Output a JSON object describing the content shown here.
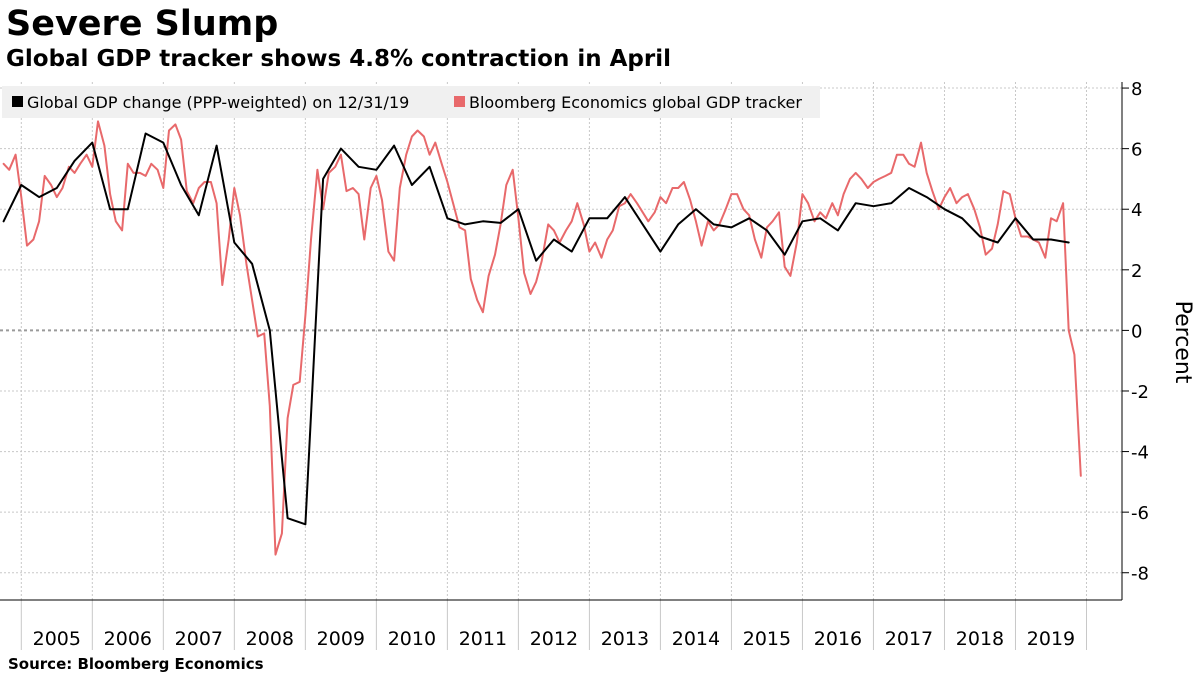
{
  "header": {
    "title": "Severe Slump",
    "subtitle": "Global GDP tracker shows 4.8% contraction in April"
  },
  "footer": {
    "source": "Source:  Bloomberg Economics"
  },
  "colors": {
    "series_black": "#000000",
    "series_red": "#e8696b",
    "grid": "#c8c8c8",
    "legend_bg": "#f0f0f0"
  },
  "chart_data": {
    "type": "line",
    "ylabel": "Percent",
    "ylim": [
      -8.9,
      8.2
    ],
    "yticks": [
      8,
      6,
      4,
      2,
      0,
      -2,
      -4,
      -6,
      -8
    ],
    "ytick_labels": [
      "8",
      "6",
      "4",
      "2",
      "0",
      "-2",
      "-4",
      "-6",
      "-8"
    ],
    "xlim": [
      2004.7,
      2020.5
    ],
    "x_categories": [
      "2005",
      "2006",
      "2007",
      "2008",
      "2009",
      "2010",
      "2011",
      "2012",
      "2013",
      "2014",
      "2015",
      "2016",
      "2017",
      "2018",
      "2019"
    ],
    "grid": true,
    "legend_position": "top-left",
    "series": [
      {
        "name": "Global GDP change (PPP-weighted) on 12/31/19",
        "color": "#000000",
        "points": [
          [
            2004.75,
            3.6
          ],
          [
            2005.0,
            4.8
          ],
          [
            2005.25,
            4.4
          ],
          [
            2005.5,
            4.7
          ],
          [
            2005.75,
            5.6
          ],
          [
            2006.0,
            6.2
          ],
          [
            2006.25,
            4.0
          ],
          [
            2006.5,
            4.0
          ],
          [
            2006.75,
            6.5
          ],
          [
            2007.0,
            6.2
          ],
          [
            2007.25,
            4.8
          ],
          [
            2007.5,
            3.8
          ],
          [
            2007.75,
            6.1
          ],
          [
            2008.0,
            2.9
          ],
          [
            2008.25,
            2.2
          ],
          [
            2008.5,
            0.0
          ],
          [
            2008.75,
            -6.2
          ],
          [
            2009.0,
            -6.4
          ],
          [
            2009.25,
            5.0
          ],
          [
            2009.5,
            6.0
          ],
          [
            2009.75,
            5.4
          ],
          [
            2010.0,
            5.3
          ],
          [
            2010.25,
            6.1
          ],
          [
            2010.5,
            4.8
          ],
          [
            2010.75,
            5.4
          ],
          [
            2011.0,
            3.7
          ],
          [
            2011.25,
            3.5
          ],
          [
            2011.5,
            3.6
          ],
          [
            2011.75,
            3.55
          ],
          [
            2012.0,
            4.0
          ],
          [
            2012.25,
            2.3
          ],
          [
            2012.5,
            3.0
          ],
          [
            2012.75,
            2.6
          ],
          [
            2013.0,
            3.7
          ],
          [
            2013.25,
            3.7
          ],
          [
            2013.5,
            4.4
          ],
          [
            2013.75,
            3.5
          ],
          [
            2014.0,
            2.6
          ],
          [
            2014.25,
            3.5
          ],
          [
            2014.5,
            4.0
          ],
          [
            2014.75,
            3.5
          ],
          [
            2015.0,
            3.4
          ],
          [
            2015.25,
            3.7
          ],
          [
            2015.5,
            3.3
          ],
          [
            2015.75,
            2.5
          ],
          [
            2016.0,
            3.6
          ],
          [
            2016.25,
            3.7
          ],
          [
            2016.5,
            3.3
          ],
          [
            2016.75,
            4.2
          ],
          [
            2017.0,
            4.1
          ],
          [
            2017.25,
            4.2
          ],
          [
            2017.5,
            4.7
          ],
          [
            2017.75,
            4.4
          ],
          [
            2018.0,
            4.0
          ],
          [
            2018.25,
            3.7
          ],
          [
            2018.5,
            3.1
          ],
          [
            2018.75,
            2.9
          ],
          [
            2019.0,
            3.7
          ],
          [
            2019.25,
            3.0
          ],
          [
            2019.5,
            3.0
          ],
          [
            2019.75,
            2.9
          ]
        ]
      },
      {
        "name": "Bloomberg Economics global GDP tracker",
        "color": "#e8696b",
        "points": [
          [
            2004.75,
            5.5
          ],
          [
            2004.83,
            5.3
          ],
          [
            2004.92,
            5.8
          ],
          [
            2005.0,
            4.4
          ],
          [
            2005.08,
            2.8
          ],
          [
            2005.17,
            3.0
          ],
          [
            2005.25,
            3.6
          ],
          [
            2005.33,
            5.1
          ],
          [
            2005.42,
            4.8
          ],
          [
            2005.5,
            4.4
          ],
          [
            2005.58,
            4.7
          ],
          [
            2005.67,
            5.4
          ],
          [
            2005.75,
            5.2
          ],
          [
            2005.83,
            5.5
          ],
          [
            2005.92,
            5.8
          ],
          [
            2006.0,
            5.4
          ],
          [
            2006.08,
            6.9
          ],
          [
            2006.17,
            6.1
          ],
          [
            2006.25,
            4.5
          ],
          [
            2006.33,
            3.6
          ],
          [
            2006.42,
            3.3
          ],
          [
            2006.5,
            5.5
          ],
          [
            2006.58,
            5.2
          ],
          [
            2006.67,
            5.2
          ],
          [
            2006.75,
            5.1
          ],
          [
            2006.83,
            5.5
          ],
          [
            2006.92,
            5.3
          ],
          [
            2007.0,
            4.7
          ],
          [
            2007.08,
            6.6
          ],
          [
            2007.17,
            6.8
          ],
          [
            2007.25,
            6.3
          ],
          [
            2007.33,
            4.6
          ],
          [
            2007.42,
            4.2
          ],
          [
            2007.5,
            4.7
          ],
          [
            2007.58,
            4.9
          ],
          [
            2007.67,
            4.9
          ],
          [
            2007.75,
            4.2
          ],
          [
            2007.83,
            1.5
          ],
          [
            2007.92,
            3.0
          ],
          [
            2008.0,
            4.7
          ],
          [
            2008.08,
            3.8
          ],
          [
            2008.17,
            2.2
          ],
          [
            2008.25,
            1.0
          ],
          [
            2008.33,
            -0.2
          ],
          [
            2008.42,
            -0.1
          ],
          [
            2008.5,
            -2.5
          ],
          [
            2008.58,
            -7.4
          ],
          [
            2008.67,
            -6.7
          ],
          [
            2008.75,
            -2.9
          ],
          [
            2008.83,
            -1.8
          ],
          [
            2008.92,
            -1.7
          ],
          [
            2009.0,
            0.5
          ],
          [
            2009.08,
            3.0
          ],
          [
            2009.17,
            5.3
          ],
          [
            2009.25,
            4.0
          ],
          [
            2009.33,
            5.2
          ],
          [
            2009.42,
            5.4
          ],
          [
            2009.5,
            5.8
          ],
          [
            2009.58,
            4.6
          ],
          [
            2009.67,
            4.7
          ],
          [
            2009.75,
            4.5
          ],
          [
            2009.83,
            3.0
          ],
          [
            2009.92,
            4.7
          ],
          [
            2010.0,
            5.1
          ],
          [
            2010.08,
            4.3
          ],
          [
            2010.17,
            2.6
          ],
          [
            2010.25,
            2.3
          ],
          [
            2010.33,
            4.7
          ],
          [
            2010.42,
            5.8
          ],
          [
            2010.5,
            6.4
          ],
          [
            2010.58,
            6.6
          ],
          [
            2010.67,
            6.4
          ],
          [
            2010.75,
            5.8
          ],
          [
            2010.83,
            6.2
          ],
          [
            2010.92,
            5.5
          ],
          [
            2011.0,
            4.9
          ],
          [
            2011.08,
            4.2
          ],
          [
            2011.17,
            3.4
          ],
          [
            2011.25,
            3.3
          ],
          [
            2011.33,
            1.7
          ],
          [
            2011.42,
            1.0
          ],
          [
            2011.5,
            0.6
          ],
          [
            2011.58,
            1.8
          ],
          [
            2011.67,
            2.5
          ],
          [
            2011.75,
            3.5
          ],
          [
            2011.83,
            4.8
          ],
          [
            2011.92,
            5.3
          ],
          [
            2012.0,
            3.7
          ],
          [
            2012.08,
            1.9
          ],
          [
            2012.17,
            1.2
          ],
          [
            2012.25,
            1.6
          ],
          [
            2012.33,
            2.3
          ],
          [
            2012.42,
            3.5
          ],
          [
            2012.5,
            3.3
          ],
          [
            2012.58,
            2.9
          ],
          [
            2012.67,
            3.3
          ],
          [
            2012.75,
            3.6
          ],
          [
            2012.83,
            4.2
          ],
          [
            2012.92,
            3.5
          ],
          [
            2013.0,
            2.6
          ],
          [
            2013.08,
            2.9
          ],
          [
            2013.17,
            2.4
          ],
          [
            2013.25,
            3.0
          ],
          [
            2013.33,
            3.3
          ],
          [
            2013.42,
            4.1
          ],
          [
            2013.5,
            4.2
          ],
          [
            2013.58,
            4.5
          ],
          [
            2013.67,
            4.2
          ],
          [
            2013.75,
            3.9
          ],
          [
            2013.83,
            3.6
          ],
          [
            2013.92,
            3.9
          ],
          [
            2014.0,
            4.4
          ],
          [
            2014.08,
            4.2
          ],
          [
            2014.17,
            4.7
          ],
          [
            2014.25,
            4.7
          ],
          [
            2014.33,
            4.9
          ],
          [
            2014.42,
            4.3
          ],
          [
            2014.5,
            3.6
          ],
          [
            2014.58,
            2.8
          ],
          [
            2014.67,
            3.6
          ],
          [
            2014.75,
            3.3
          ],
          [
            2014.83,
            3.5
          ],
          [
            2014.92,
            4.0
          ],
          [
            2015.0,
            4.5
          ],
          [
            2015.08,
            4.5
          ],
          [
            2015.17,
            4.0
          ],
          [
            2015.25,
            3.8
          ],
          [
            2015.33,
            3.0
          ],
          [
            2015.42,
            2.4
          ],
          [
            2015.5,
            3.4
          ],
          [
            2015.58,
            3.6
          ],
          [
            2015.67,
            3.9
          ],
          [
            2015.75,
            2.1
          ],
          [
            2015.83,
            1.8
          ],
          [
            2015.92,
            2.9
          ],
          [
            2016.0,
            4.5
          ],
          [
            2016.08,
            4.2
          ],
          [
            2016.17,
            3.6
          ],
          [
            2016.25,
            3.9
          ],
          [
            2016.33,
            3.7
          ],
          [
            2016.42,
            4.2
          ],
          [
            2016.5,
            3.8
          ],
          [
            2016.58,
            4.5
          ],
          [
            2016.67,
            5.0
          ],
          [
            2016.75,
            5.2
          ],
          [
            2016.83,
            5.0
          ],
          [
            2016.92,
            4.7
          ],
          [
            2017.0,
            4.9
          ],
          [
            2017.08,
            5.0
          ],
          [
            2017.17,
            5.1
          ],
          [
            2017.25,
            5.2
          ],
          [
            2017.33,
            5.8
          ],
          [
            2017.42,
            5.8
          ],
          [
            2017.5,
            5.5
          ],
          [
            2017.58,
            5.4
          ],
          [
            2017.67,
            6.2
          ],
          [
            2017.75,
            5.2
          ],
          [
            2017.83,
            4.6
          ],
          [
            2017.92,
            4.0
          ],
          [
            2018.0,
            4.4
          ],
          [
            2018.08,
            4.7
          ],
          [
            2018.17,
            4.2
          ],
          [
            2018.25,
            4.4
          ],
          [
            2018.33,
            4.5
          ],
          [
            2018.42,
            4.0
          ],
          [
            2018.5,
            3.4
          ],
          [
            2018.58,
            2.5
          ],
          [
            2018.67,
            2.7
          ],
          [
            2018.75,
            3.5
          ],
          [
            2018.83,
            4.6
          ],
          [
            2018.92,
            4.5
          ],
          [
            2019.0,
            3.7
          ],
          [
            2019.08,
            3.1
          ],
          [
            2019.17,
            3.1
          ],
          [
            2019.25,
            3.0
          ],
          [
            2019.33,
            2.9
          ],
          [
            2019.42,
            2.4
          ],
          [
            2019.5,
            3.7
          ],
          [
            2019.58,
            3.6
          ],
          [
            2019.67,
            4.2
          ],
          [
            2019.75,
            0.0
          ],
          [
            2019.83,
            -0.8
          ],
          [
            2019.92,
            -4.8
          ]
        ]
      }
    ]
  }
}
